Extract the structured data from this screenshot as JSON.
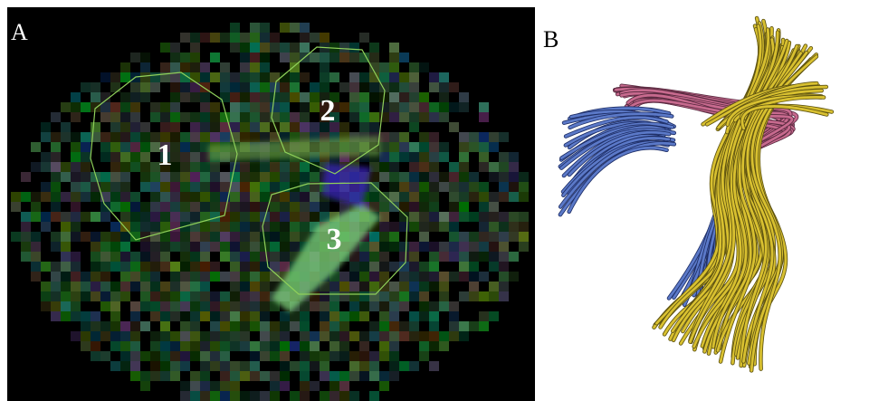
{
  "panels": [
    {
      "label": "A",
      "regions": [
        "1",
        "2",
        "3"
      ]
    },
    {
      "label": "B"
    }
  ]
}
